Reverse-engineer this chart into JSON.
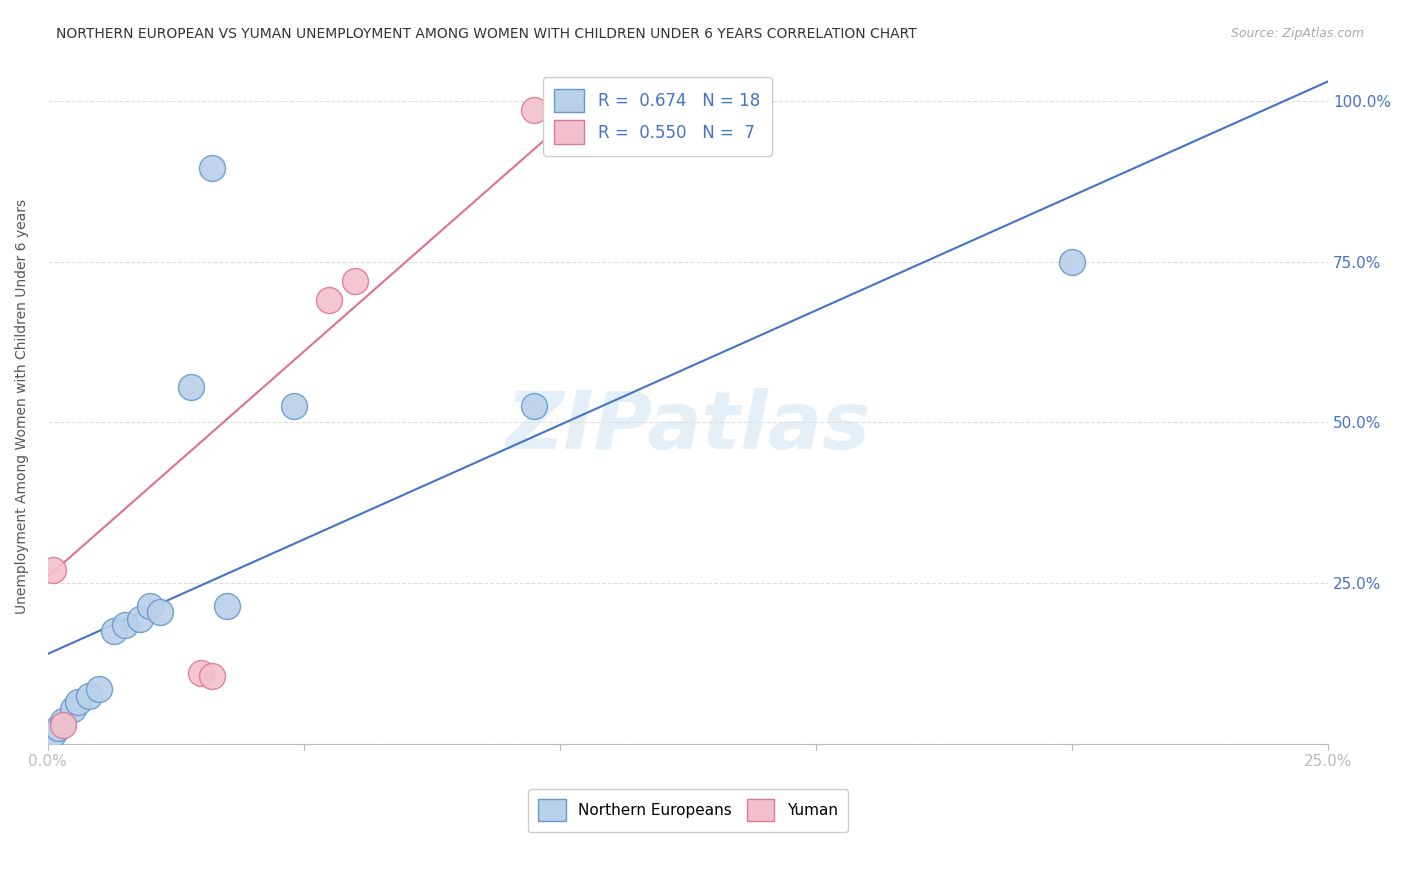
{
  "title": "NORTHERN EUROPEAN VS YUMAN UNEMPLOYMENT AMONG WOMEN WITH CHILDREN UNDER 6 YEARS CORRELATION CHART",
  "source": "Source: ZipAtlas.com",
  "ylabel": "Unemployment Among Women with Children Under 6 years",
  "xlim": [
    0.0,
    0.25
  ],
  "ylim": [
    0.0,
    1.05
  ],
  "xticks": [
    0.0,
    0.05,
    0.1,
    0.15,
    0.2,
    0.25
  ],
  "yticks": [
    0.0,
    0.25,
    0.5,
    0.75,
    1.0
  ],
  "xticklabels": [
    "0.0%",
    "",
    "",
    "",
    "",
    "25.0%"
  ],
  "yticklabels_right": [
    "",
    "25.0%",
    "50.0%",
    "75.0%",
    "100.0%"
  ],
  "blue_color": "#b8d0e8",
  "blue_edge_color": "#6699cc",
  "pink_color": "#f2c0cc",
  "pink_edge_color": "#dd7799",
  "trend_blue": "#4472c4",
  "trend_pink": "#e07090",
  "blue_R": 0.674,
  "blue_N": 18,
  "pink_R": 0.55,
  "pink_N": 7,
  "blue_x": [
    0.001,
    0.002,
    0.003,
    0.005,
    0.006,
    0.008,
    0.01,
    0.013,
    0.015,
    0.018,
    0.02,
    0.022,
    0.028,
    0.032,
    0.035,
    0.048,
    0.095,
    0.2
  ],
  "blue_y": [
    0.015,
    0.025,
    0.035,
    0.055,
    0.065,
    0.075,
    0.085,
    0.175,
    0.185,
    0.195,
    0.215,
    0.205,
    0.555,
    0.895,
    0.215,
    0.525,
    0.525,
    0.75
  ],
  "pink_x": [
    0.001,
    0.003,
    0.03,
    0.032,
    0.055,
    0.06,
    0.095
  ],
  "pink_y": [
    0.27,
    0.03,
    0.11,
    0.105,
    0.69,
    0.72,
    0.985
  ],
  "blue_trend_x0": 0.0,
  "blue_trend_y0": 0.14,
  "blue_trend_x1": 0.25,
  "blue_trend_y1": 1.03,
  "pink_trend_x0": 0.0,
  "pink_trend_y0": 0.26,
  "pink_trend_x1": 0.11,
  "pink_trend_y1": 1.03,
  "watermark": "ZIPatlas"
}
